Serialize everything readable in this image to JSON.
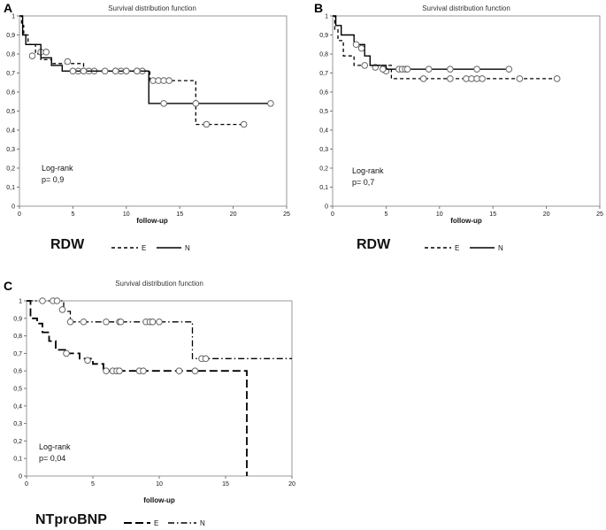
{
  "chart_data": [
    {
      "type": "line",
      "panel": "A",
      "title": "Survival distribution function",
      "xlabel": "follow-up",
      "ylabel": "",
      "xlim": [
        0,
        25
      ],
      "ylim": [
        0,
        1
      ],
      "xticks": [
        "0",
        "5",
        "10",
        "15",
        "20",
        "25"
      ],
      "yticks": [
        "0",
        "0,1",
        "0,2",
        "0,3",
        "0,4",
        "0,5",
        "0,6",
        "0,7",
        "0,8",
        "0,9",
        "1"
      ],
      "annotation_line1": "Log-rank",
      "annotation_line2": "p= 0,9",
      "group_label": "RDW",
      "series": [
        {
          "name": "E",
          "style": "dashed",
          "steps": [
            [
              0,
              1
            ],
            [
              0.2,
              0.95
            ],
            [
              0.4,
              0.9
            ],
            [
              0.8,
              0.85
            ],
            [
              1.5,
              0.8
            ],
            [
              2,
              0.77
            ],
            [
              3,
              0.75
            ],
            [
              6,
              0.71
            ],
            [
              12,
              0.71
            ],
            [
              12.2,
              0.66
            ],
            [
              16.5,
              0.43
            ],
            [
              21,
              0.43
            ]
          ],
          "censored": [
            [
              1.2,
              0.79
            ],
            [
              2,
              0.81
            ],
            [
              2.5,
              0.81
            ],
            [
              4.5,
              0.76
            ],
            [
              5.5,
              0.71
            ],
            [
              6,
              0.71
            ],
            [
              6.5,
              0.71
            ],
            [
              7,
              0.71
            ],
            [
              9,
              0.71
            ],
            [
              9.5,
              0.71
            ],
            [
              10,
              0.71
            ],
            [
              11,
              0.71
            ],
            [
              11.5,
              0.71
            ],
            [
              12.5,
              0.66
            ],
            [
              13,
              0.66
            ],
            [
              13.5,
              0.66
            ],
            [
              14,
              0.66
            ],
            [
              17.5,
              0.43
            ],
            [
              21,
              0.43
            ]
          ]
        },
        {
          "name": "N",
          "style": "solid",
          "steps": [
            [
              0,
              1
            ],
            [
              0.3,
              0.9
            ],
            [
              0.6,
              0.85
            ],
            [
              2,
              0.78
            ],
            [
              3,
              0.74
            ],
            [
              4,
              0.71
            ],
            [
              12,
              0.71
            ],
            [
              12.1,
              0.54
            ],
            [
              23.5,
              0.54
            ]
          ],
          "censored": [
            [
              5,
              0.71
            ],
            [
              6,
              0.71
            ],
            [
              8,
              0.71
            ],
            [
              9,
              0.71
            ],
            [
              10,
              0.71
            ],
            [
              11,
              0.71
            ],
            [
              13.5,
              0.54
            ],
            [
              16.5,
              0.54
            ],
            [
              23.5,
              0.54
            ]
          ]
        }
      ]
    },
    {
      "type": "line",
      "panel": "B",
      "title": "Survival distribution function",
      "xlabel": "follow-up",
      "ylabel": "",
      "xlim": [
        0,
        25
      ],
      "ylim": [
        0,
        1
      ],
      "xticks": [
        "0",
        "5",
        "10",
        "15",
        "20",
        "25"
      ],
      "yticks": [
        "0",
        "0,1",
        "0,2",
        "0,3",
        "0,4",
        "0,5",
        "0,6",
        "0,7",
        "0,8",
        "0,9",
        "1"
      ],
      "annotation_line1": "Log-rank",
      "annotation_line2": "p= 0,7",
      "group_label": "RDW",
      "series": [
        {
          "name": "E",
          "style": "dashed",
          "steps": [
            [
              0,
              1
            ],
            [
              0.2,
              0.93
            ],
            [
              0.5,
              0.87
            ],
            [
              1,
              0.79
            ],
            [
              2,
              0.74
            ],
            [
              3,
              0.74
            ],
            [
              5.5,
              0.67
            ],
            [
              21,
              0.67
            ]
          ],
          "censored": [
            [
              3,
              0.74
            ],
            [
              4,
              0.73
            ],
            [
              5,
              0.71
            ],
            [
              8.5,
              0.67
            ],
            [
              11,
              0.67
            ],
            [
              12.5,
              0.67
            ],
            [
              13,
              0.67
            ],
            [
              13.5,
              0.67
            ],
            [
              14,
              0.67
            ],
            [
              17.5,
              0.67
            ],
            [
              21,
              0.67
            ]
          ]
        },
        {
          "name": "N",
          "style": "solid",
          "steps": [
            [
              0,
              1
            ],
            [
              0.3,
              0.95
            ],
            [
              0.8,
              0.9
            ],
            [
              2,
              0.85
            ],
            [
              3,
              0.79
            ],
            [
              3.5,
              0.74
            ],
            [
              5,
              0.72
            ],
            [
              16.5,
              0.72
            ]
          ],
          "censored": [
            [
              2.2,
              0.85
            ],
            [
              2.7,
              0.83
            ],
            [
              4.7,
              0.72
            ],
            [
              6.2,
              0.72
            ],
            [
              6.5,
              0.72
            ],
            [
              6.8,
              0.72
            ],
            [
              7,
              0.72
            ],
            [
              9,
              0.72
            ],
            [
              11,
              0.72
            ],
            [
              13.5,
              0.72
            ],
            [
              16.5,
              0.72
            ]
          ]
        }
      ]
    },
    {
      "type": "line",
      "panel": "C",
      "title": "Survival distribution function",
      "xlabel": "follow-up",
      "ylabel": "",
      "xlim": [
        0,
        20
      ],
      "ylim": [
        0,
        1
      ],
      "xticks": [
        "0",
        "5",
        "10",
        "15",
        "20"
      ],
      "yticks": [
        "0",
        "0,1",
        "0,2",
        "0,3",
        "0,4",
        "0,5",
        "0,6",
        "0,7",
        "0,8",
        "0,9",
        "1"
      ],
      "annotation_line1": "Log-rank",
      "annotation_line2": "p= 0,04",
      "group_label": "NTproBNP",
      "series": [
        {
          "name": "E",
          "style": "longdash",
          "steps": [
            [
              0,
              1
            ],
            [
              0.3,
              0.9
            ],
            [
              0.8,
              0.87
            ],
            [
              1.2,
              0.82
            ],
            [
              1.7,
              0.77
            ],
            [
              2.2,
              0.72
            ],
            [
              3,
              0.7
            ],
            [
              4,
              0.67
            ],
            [
              5,
              0.64
            ],
            [
              5.8,
              0.6
            ],
            [
              16.6,
              0.6
            ],
            [
              16.6,
              0
            ]
          ],
          "censored": [
            [
              3,
              0.7
            ],
            [
              4.6,
              0.66
            ],
            [
              6,
              0.6
            ],
            [
              6.5,
              0.6
            ],
            [
              6.8,
              0.6
            ],
            [
              7,
              0.6
            ],
            [
              8.5,
              0.6
            ],
            [
              8.8,
              0.6
            ],
            [
              11.5,
              0.6
            ],
            [
              12.7,
              0.6
            ]
          ]
        },
        {
          "name": "N",
          "style": "dashdot",
          "steps": [
            [
              0,
              1
            ],
            [
              2.5,
              1
            ],
            [
              2.8,
              0.94
            ],
            [
              3.3,
              0.88
            ],
            [
              12.5,
              0.88
            ],
            [
              12.5,
              0.67
            ],
            [
              20,
              0.67
            ]
          ],
          "censored": [
            [
              1.2,
              1
            ],
            [
              2,
              1
            ],
            [
              2.3,
              1
            ],
            [
              2.7,
              0.95
            ],
            [
              3.3,
              0.88
            ],
            [
              4.3,
              0.88
            ],
            [
              6,
              0.88
            ],
            [
              7,
              0.88
            ],
            [
              7.1,
              0.88
            ],
            [
              9,
              0.88
            ],
            [
              9.3,
              0.88
            ],
            [
              9.5,
              0.88
            ],
            [
              10,
              0.88
            ],
            [
              13.2,
              0.67
            ],
            [
              13.5,
              0.67
            ]
          ]
        }
      ]
    }
  ]
}
